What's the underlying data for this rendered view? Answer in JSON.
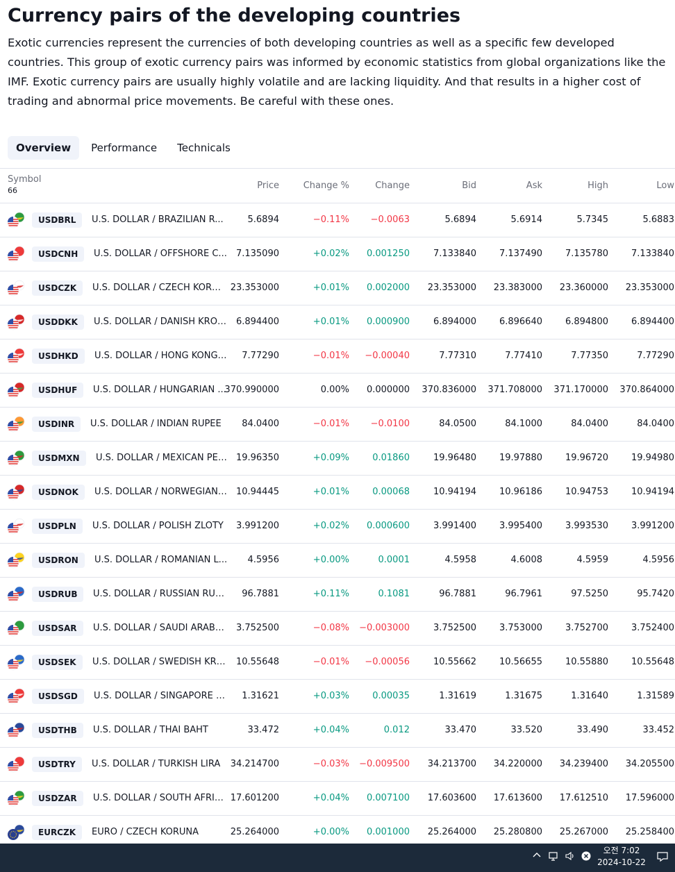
{
  "title": "Currency pairs of the developing countries",
  "intro": "Exotic currencies represent the currencies of both developing countries as well as a specific few developed countries. This group of exotic currency pairs was informed by economic statistics from global organizations like the IMF. Exotic currency pairs are usually highly volatile and are lacking liquidity. And that results in a higher cost of trading and abnormal price movements. Be careful with these ones.",
  "tabs": [
    "Overview",
    "Performance",
    "Technicals"
  ],
  "active_tab": "Overview",
  "columns": {
    "symbol": "Symbol",
    "symbol_count": "66",
    "price": "Price",
    "change_pct": "Change %",
    "change": "Change",
    "bid": "Bid",
    "ask": "Ask",
    "high": "High",
    "low": "Low"
  },
  "colors": {
    "positive": "#089981",
    "negative": "#f23645",
    "neutral": "#131722"
  },
  "rows": [
    {
      "ticker": "USDBRL",
      "name": "U.S. DOLLAR / BRAZILIAN R...",
      "price": "5.6894",
      "change_pct": "−0.11%",
      "change": "−0.0063",
      "bid": "5.6894",
      "ask": "5.6914",
      "high": "5.7345",
      "low": "5.6883",
      "dir": "neg",
      "flag": "br-flag-icon"
    },
    {
      "ticker": "USDCNH",
      "name": "U.S. DOLLAR / OFFSHORE C...",
      "price": "7.135090",
      "change_pct": "+0.02%",
      "change": "0.001250",
      "bid": "7.133840",
      "ask": "7.137490",
      "high": "7.135780",
      "low": "7.133840",
      "dir": "pos",
      "flag": "cn-flag-icon"
    },
    {
      "ticker": "USDCZK",
      "name": "U.S. DOLLAR / CZECH KORU...",
      "price": "23.353000",
      "change_pct": "+0.01%",
      "change": "0.002000",
      "bid": "23.353000",
      "ask": "23.383000",
      "high": "23.360000",
      "low": "23.353000",
      "dir": "pos",
      "flag": "cz-flag-icon"
    },
    {
      "ticker": "USDDKK",
      "name": "U.S. DOLLAR / DANISH KRONE",
      "price": "6.894400",
      "change_pct": "+0.01%",
      "change": "0.000900",
      "bid": "6.894000",
      "ask": "6.896640",
      "high": "6.894800",
      "low": "6.894400",
      "dir": "pos",
      "flag": "dk-flag-icon"
    },
    {
      "ticker": "USDHKD",
      "name": "U.S. DOLLAR / HONG KONG ...",
      "price": "7.77290",
      "change_pct": "−0.01%",
      "change": "−0.00040",
      "bid": "7.77310",
      "ask": "7.77410",
      "high": "7.77350",
      "low": "7.77290",
      "dir": "neg",
      "flag": "hk-flag-icon"
    },
    {
      "ticker": "USDHUF",
      "name": "U.S. DOLLAR / HUNGARIAN ...",
      "price": "370.990000",
      "change_pct": "0.00%",
      "change": "0.000000",
      "bid": "370.836000",
      "ask": "371.708000",
      "high": "371.170000",
      "low": "370.864000",
      "dir": "neu",
      "flag": "hu-flag-icon"
    },
    {
      "ticker": "USDINR",
      "name": "U.S. DOLLAR / INDIAN RUPEE",
      "price": "84.0400",
      "change_pct": "−0.01%",
      "change": "−0.0100",
      "bid": "84.0500",
      "ask": "84.1000",
      "high": "84.0400",
      "low": "84.0400",
      "dir": "neg",
      "flag": "in-flag-icon"
    },
    {
      "ticker": "USDMXN",
      "name": "U.S. DOLLAR / MEXICAN PESO",
      "price": "19.96350",
      "change_pct": "+0.09%",
      "change": "0.01860",
      "bid": "19.96480",
      "ask": "19.97880",
      "high": "19.96720",
      "low": "19.94980",
      "dir": "pos",
      "flag": "mx-flag-icon"
    },
    {
      "ticker": "USDNOK",
      "name": "U.S. DOLLAR / NORWEGIAN ...",
      "price": "10.94445",
      "change_pct": "+0.01%",
      "change": "0.00068",
      "bid": "10.94194",
      "ask": "10.96186",
      "high": "10.94753",
      "low": "10.94194",
      "dir": "pos",
      "flag": "no-flag-icon"
    },
    {
      "ticker": "USDPLN",
      "name": "U.S. DOLLAR / POLISH ZLOTY",
      "price": "3.991200",
      "change_pct": "+0.02%",
      "change": "0.000600",
      "bid": "3.991400",
      "ask": "3.995400",
      "high": "3.993530",
      "low": "3.991200",
      "dir": "pos",
      "flag": "pl-flag-icon"
    },
    {
      "ticker": "USDRON",
      "name": "U.S. DOLLAR / ROMANIAN L...",
      "price": "4.5956",
      "change_pct": "+0.00%",
      "change": "0.0001",
      "bid": "4.5958",
      "ask": "4.6008",
      "high": "4.5959",
      "low": "4.5956",
      "dir": "pos",
      "flag": "ro-flag-icon"
    },
    {
      "ticker": "USDRUB",
      "name": "U.S. DOLLAR / RUSSIAN RUB...",
      "price": "96.7881",
      "change_pct": "+0.11%",
      "change": "0.1081",
      "bid": "96.7881",
      "ask": "96.7961",
      "high": "97.5250",
      "low": "95.7420",
      "dir": "pos",
      "flag": "ru-flag-icon"
    },
    {
      "ticker": "USDSAR",
      "name": "U.S. DOLLAR / SAUDI ARABI...",
      "price": "3.752500",
      "change_pct": "−0.08%",
      "change": "−0.003000",
      "bid": "3.752500",
      "ask": "3.753000",
      "high": "3.752700",
      "low": "3.752400",
      "dir": "neg",
      "flag": "sa-flag-icon"
    },
    {
      "ticker": "USDSEK",
      "name": "U.S. DOLLAR / SWEDISH KRO...",
      "price": "10.55648",
      "change_pct": "−0.01%",
      "change": "−0.00056",
      "bid": "10.55662",
      "ask": "10.56655",
      "high": "10.55880",
      "low": "10.55648",
      "dir": "neg",
      "flag": "se-flag-icon"
    },
    {
      "ticker": "USDSGD",
      "name": "U.S. DOLLAR / SINGAPORE D...",
      "price": "1.31621",
      "change_pct": "+0.03%",
      "change": "0.00035",
      "bid": "1.31619",
      "ask": "1.31675",
      "high": "1.31640",
      "low": "1.31589",
      "dir": "pos",
      "flag": "sg-flag-icon"
    },
    {
      "ticker": "USDTHB",
      "name": "U.S. DOLLAR / THAI BAHT",
      "price": "33.472",
      "change_pct": "+0.04%",
      "change": "0.012",
      "bid": "33.470",
      "ask": "33.520",
      "high": "33.490",
      "low": "33.452",
      "dir": "pos",
      "flag": "th-flag-icon"
    },
    {
      "ticker": "USDTRY",
      "name": "U.S. DOLLAR / TURKISH LIRA",
      "price": "34.214700",
      "change_pct": "−0.03%",
      "change": "−0.009500",
      "bid": "34.213700",
      "ask": "34.220000",
      "high": "34.239400",
      "low": "34.205500",
      "dir": "neg",
      "flag": "tr-flag-icon"
    },
    {
      "ticker": "USDZAR",
      "name": "U.S. DOLLAR / SOUTH AFRIC...",
      "price": "17.601200",
      "change_pct": "+0.04%",
      "change": "0.007100",
      "bid": "17.603600",
      "ask": "17.613600",
      "high": "17.612510",
      "low": "17.596000",
      "dir": "pos",
      "flag": "za-flag-icon"
    },
    {
      "ticker": "EURCZK",
      "name": "EURO / CZECH KORUNA",
      "price": "25.264000",
      "change_pct": "+0.00%",
      "change": "0.001000",
      "bid": "25.264000",
      "ask": "25.280800",
      "high": "25.267000",
      "low": "25.258400",
      "dir": "pos",
      "flag": "eu-flag-icon"
    }
  ],
  "taskbar": {
    "time": "오전 7:02",
    "date": "2024-10-22",
    "icons": [
      "chevron-up-icon",
      "network-icon",
      "volume-icon",
      "close-circle-icon",
      "notification-icon"
    ]
  }
}
